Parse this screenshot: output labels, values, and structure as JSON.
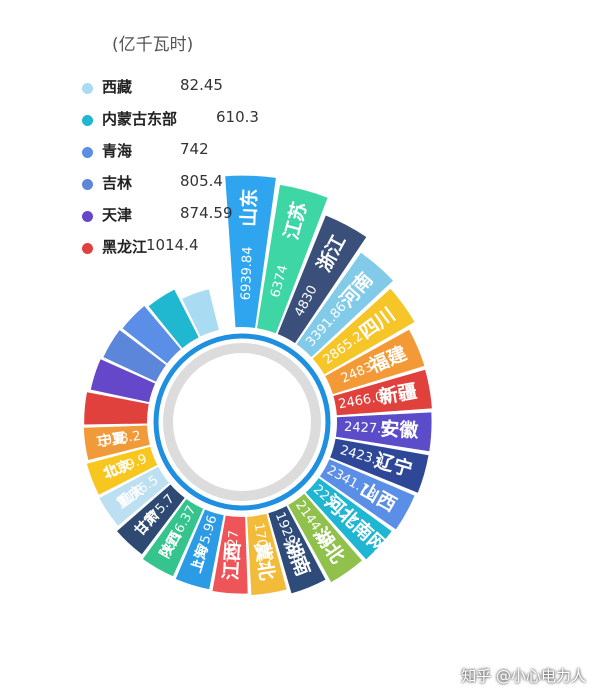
{
  "unit_label": "(亿千瓦时)",
  "watermark": "知乎 @小心电力人",
  "chart_data": {
    "type": "bar",
    "layout": "radial",
    "unit": "(亿千瓦时)",
    "categories": [
      "山东",
      "江苏",
      "浙江",
      "河南",
      "四川",
      "福建",
      "新疆",
      "安徽",
      "辽宁",
      "山西",
      "河北南网",
      "湖北",
      "湖南",
      "冀北",
      "江西",
      "上海",
      "陕西",
      "甘肃",
      "重庆",
      "北京",
      "宁夏",
      "黑龙江",
      "天津",
      "吉林",
      "青海",
      "内蒙古东部",
      "西藏"
    ],
    "values": [
      6939.84,
      6374,
      4830,
      3391.86,
      2865.2,
      2483,
      2466.06,
      2427.5,
      2423.4,
      2341.73,
      2231.22,
      2144.18,
      1929.28,
      1702.7,
      1627,
      1575.96,
      1516.37,
      1375.7,
      1186.5,
      1139.9,
      1038.2,
      1014.4,
      874.59,
      805.4,
      742,
      610.3,
      82.45
    ],
    "value_labels": [
      "6939.84",
      "6374",
      "4830",
      "3391.86",
      "2865.2",
      "2483",
      "2466.06",
      "2427.5",
      "2423.4",
      "2341.73",
      "2231.22",
      "2144.18",
      "1929.28",
      "1702.7",
      "1627",
      "1575.96",
      "1516.37",
      "1375.7",
      "1186.5",
      "1139.9",
      "1038.2",
      "1014.4",
      "874.59",
      "805.4",
      "742",
      "610.3",
      "82.45"
    ],
    "colors": [
      "#2fa5f0",
      "#3fd6a6",
      "#3a4f79",
      "#81cbe9",
      "#f6c629",
      "#f39a36",
      "#e1413c",
      "#5b4cc9",
      "#2e4897",
      "#5b8ee6",
      "#1fb6d3",
      "#8fc14c",
      "#2e4b7a",
      "#f3bb3a",
      "#ef5459",
      "#2c9be6",
      "#35c48d",
      "#2e4a72",
      "#bcdff2",
      "#f8c71f",
      "#f19a3a",
      "#e1413c",
      "#6448c9",
      "#5b86d9",
      "#5b8ee6",
      "#1fb8d0",
      "#a9dbf3"
    ],
    "legend": [
      {
        "name": "西藏",
        "value": "82.45",
        "color": "#a9dbf3"
      },
      {
        "name": "内蒙古东部",
        "value": "610.3",
        "color": "#1fb8d0"
      },
      {
        "name": "青海",
        "value": "742",
        "color": "#5b8ee6"
      },
      {
        "name": "吉林",
        "value": "805.4",
        "color": "#5b86d9"
      },
      {
        "name": "天津",
        "value": "874.59",
        "color": "#6448c9"
      },
      {
        "name": "黑龙江",
        "value": "1014.4",
        "color": "#e1413c"
      }
    ]
  }
}
